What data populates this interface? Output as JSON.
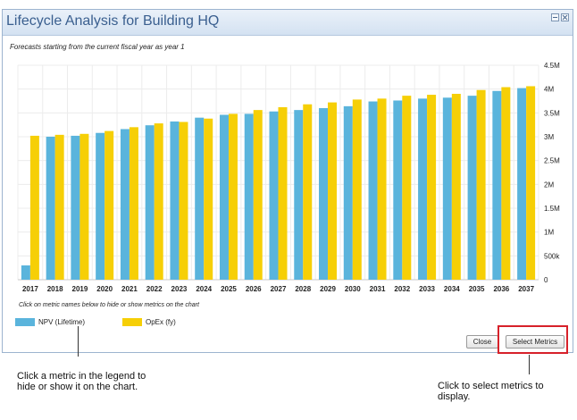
{
  "dialog": {
    "title": "Lifecycle Analysis for Building HQ",
    "subtitle": "Forecasts starting from the current fiscal year as year 1",
    "hint": "Click on metric names below to hide or show metrics on the chart",
    "close_button": "Close",
    "select_metrics_button": "Select Metrics"
  },
  "legend": [
    {
      "label": "NPV (Lifetime)",
      "color": "#5ab4dc"
    },
    {
      "label": "OpEx (fy)",
      "color": "#f6cf06"
    }
  ],
  "annotations": {
    "legend_callout": "Click a metric in the legend  to hide or show it on the chart.",
    "select_callout": "Click to select metrics to display."
  },
  "chart_data": {
    "type": "bar",
    "categories": [
      "2017",
      "2018",
      "2019",
      "2020",
      "2021",
      "2022",
      "2023",
      "2024",
      "2025",
      "2026",
      "2027",
      "2028",
      "2029",
      "2030",
      "2031",
      "2032",
      "2033",
      "2034",
      "2035",
      "2036",
      "2037"
    ],
    "series": [
      {
        "name": "NPV (Lifetime)",
        "color": "#5ab4dc",
        "values": [
          300000,
          3000000,
          3020000,
          3080000,
          3160000,
          3240000,
          3320000,
          3400000,
          3460000,
          3480000,
          3530000,
          3560000,
          3600000,
          3640000,
          3740000,
          3760000,
          3800000,
          3820000,
          3860000,
          3960000,
          4020000
        ]
      },
      {
        "name": "OpEx (fy)",
        "color": "#f6cf06",
        "values": [
          3020000,
          3040000,
          3060000,
          3120000,
          3200000,
          3280000,
          3310000,
          3380000,
          3480000,
          3560000,
          3620000,
          3680000,
          3720000,
          3780000,
          3800000,
          3860000,
          3880000,
          3900000,
          3980000,
          4040000,
          4060000
        ]
      }
    ],
    "yticks": [
      "0",
      "500k",
      "1M",
      "1.5M",
      "2M",
      "2.5M",
      "3M",
      "3.5M",
      "4M",
      "4.5M"
    ],
    "ylim": [
      0,
      4500000
    ],
    "grid": true
  }
}
